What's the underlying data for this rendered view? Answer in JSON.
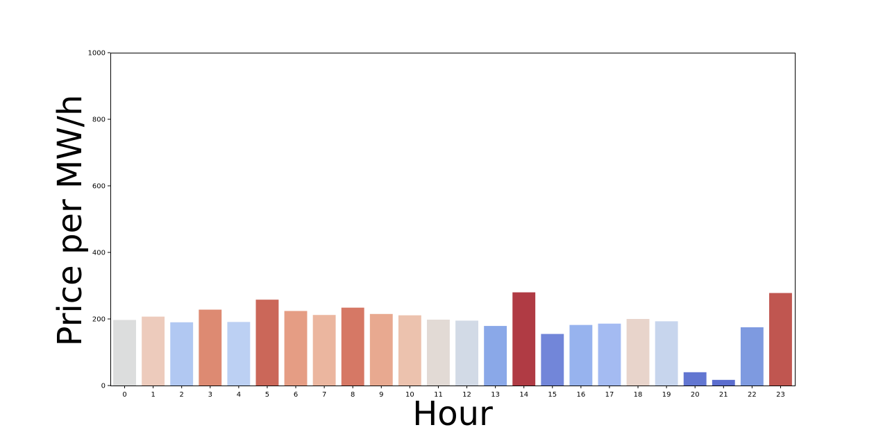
{
  "chart_data": {
    "type": "bar",
    "title": "",
    "xlabel": "Hour",
    "ylabel": "Price per MW/h",
    "ylim": [
      0,
      1000
    ],
    "yticks": [
      0,
      200,
      400,
      600,
      800,
      1000
    ],
    "categories": [
      "0",
      "1",
      "2",
      "3",
      "4",
      "5",
      "6",
      "7",
      "8",
      "9",
      "10",
      "11",
      "12",
      "13",
      "14",
      "15",
      "16",
      "17",
      "18",
      "19",
      "20",
      "21",
      "22",
      "23"
    ],
    "values": [
      197,
      207,
      190,
      228,
      191,
      258,
      224,
      212,
      234,
      215,
      211,
      198,
      195,
      179,
      280,
      155,
      182,
      186,
      200,
      193,
      40,
      17,
      175,
      278
    ],
    "colors": [
      "#dcdddd",
      "#edcbbc",
      "#b1c8f2",
      "#dd8a72",
      "#bcd0f3",
      "#cb6759",
      "#e59d84",
      "#ebb69f",
      "#d67865",
      "#e8a990",
      "#ecc2ae",
      "#e2dad5",
      "#d2dae6",
      "#8aa8e8",
      "#b03b44",
      "#7286d9",
      "#97b3ee",
      "#a4bbf2",
      "#e8d4cb",
      "#c7d5ed",
      "#6276d1",
      "#5b6dce",
      "#7e9ae0",
      "#c05650"
    ],
    "grid": false,
    "legend": "none"
  }
}
